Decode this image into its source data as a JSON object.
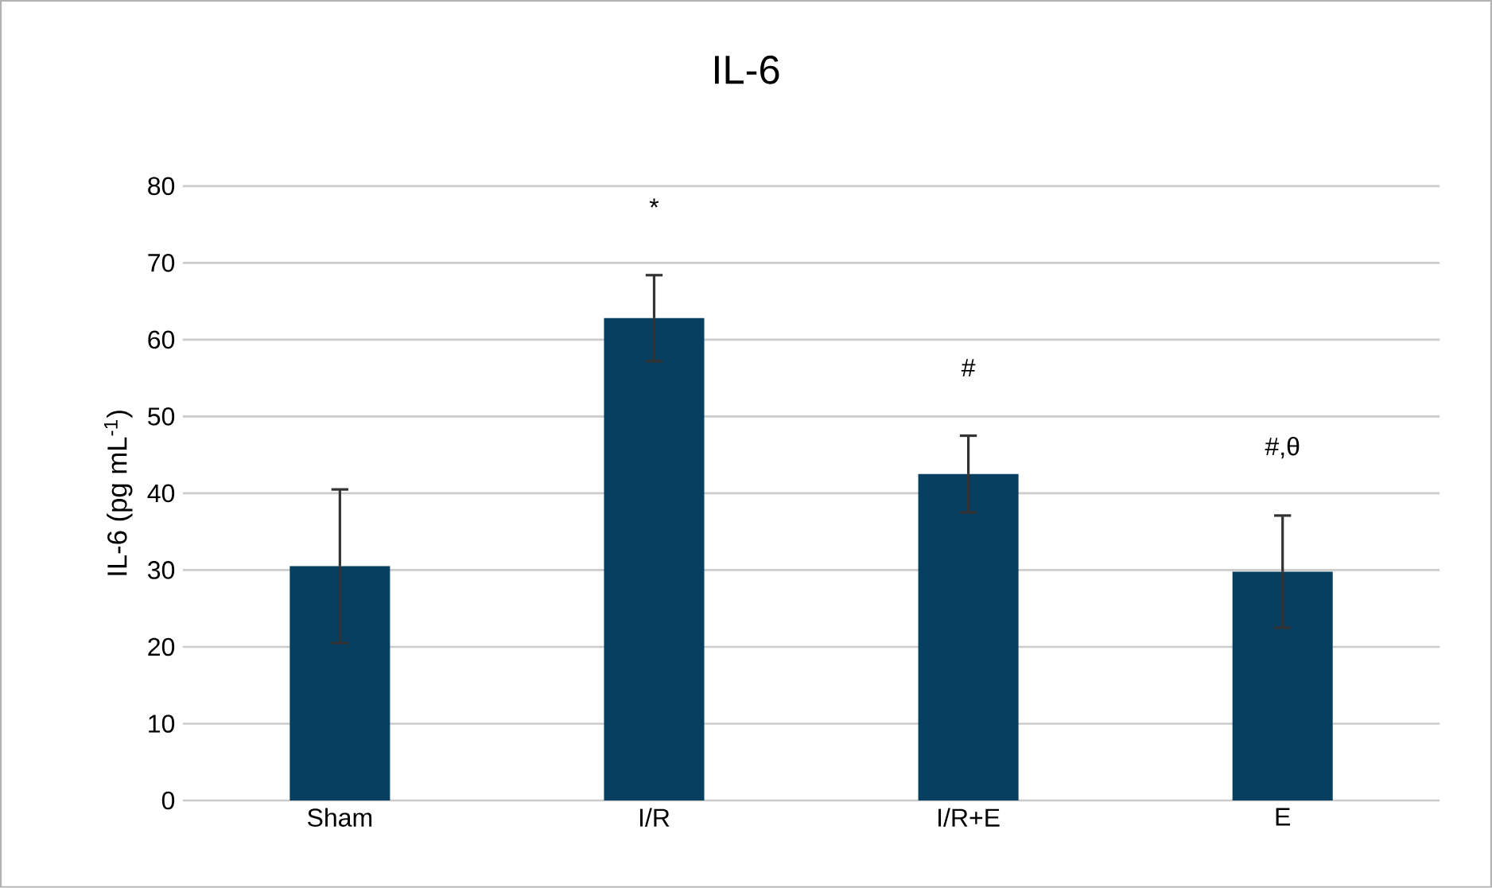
{
  "chart_data": {
    "type": "bar",
    "title": "IL-6",
    "ylabel": "IL-6 (pg mL$^{-1}$)",
    "categories": [
      "Sham",
      "I/R",
      "I/R+E",
      "E"
    ],
    "values": [
      30.5,
      62.8,
      42.5,
      29.8
    ],
    "errors": [
      10,
      5.6,
      5,
      7.3
    ],
    "color": "#063f5f",
    "ylim": [
      0,
      80
    ],
    "yticks": [
      0,
      10,
      20,
      30,
      40,
      50,
      60,
      70,
      80
    ],
    "grid": "y",
    "annotations": [
      "*",
      "#",
      "#,θ"
    ]
  }
}
